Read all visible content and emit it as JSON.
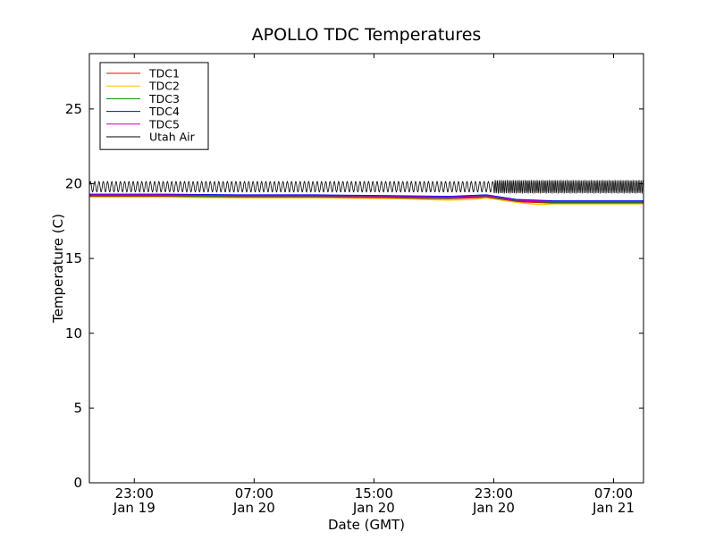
{
  "chart_data": {
    "type": "line",
    "title": "APOLLO TDC Temperatures",
    "xlabel": "Date (GMT)",
    "ylabel": "Temperature (C)",
    "ylim": [
      0,
      28.7
    ],
    "xlim_hours": [
      0,
      37
    ],
    "yticks": [
      0,
      5,
      10,
      15,
      20,
      25
    ],
    "xticks": [
      {
        "hour": 3,
        "line1": "23:00",
        "line2": "Jan 19"
      },
      {
        "hour": 11,
        "line1": "07:00",
        "line2": "Jan 20"
      },
      {
        "hour": 19,
        "line1": "15:00",
        "line2": "Jan 20"
      },
      {
        "hour": 27,
        "line1": "23:00",
        "line2": "Jan 20"
      },
      {
        "hour": 35,
        "line1": "07:00",
        "line2": "Jan 21"
      }
    ],
    "grid": false,
    "legend_position": "top-left",
    "series": [
      {
        "name": "TDC1",
        "color": "#ff0000",
        "points": [
          [
            0,
            19.15
          ],
          [
            5,
            19.15
          ],
          [
            10,
            19.1
          ],
          [
            15,
            19.1
          ],
          [
            20,
            19.05
          ],
          [
            24,
            19.0
          ],
          [
            26.5,
            19.1
          ],
          [
            28.5,
            18.8
          ],
          [
            31,
            18.7
          ],
          [
            37,
            18.7
          ]
        ]
      },
      {
        "name": "TDC2",
        "color": "#ffbf00",
        "points": [
          [
            0,
            19.1
          ],
          [
            5,
            19.1
          ],
          [
            10,
            19.05
          ],
          [
            15,
            19.05
          ],
          [
            20,
            19.0
          ],
          [
            24,
            18.9
          ],
          [
            25.5,
            18.95
          ],
          [
            26.5,
            19.05
          ],
          [
            28.5,
            18.75
          ],
          [
            30,
            18.6
          ],
          [
            31,
            18.65
          ],
          [
            37,
            18.65
          ]
        ]
      },
      {
        "name": "TDC3",
        "color": "#008000",
        "points": [
          [
            0,
            19.2
          ],
          [
            5,
            19.2
          ],
          [
            10,
            19.15
          ],
          [
            15,
            19.15
          ],
          [
            20,
            19.1
          ],
          [
            24,
            19.05
          ],
          [
            26.5,
            19.15
          ],
          [
            28.5,
            18.85
          ],
          [
            31,
            18.75
          ],
          [
            37,
            18.75
          ]
        ]
      },
      {
        "name": "TDC4",
        "color": "#0000ff",
        "points": [
          [
            0,
            19.3
          ],
          [
            5,
            19.3
          ],
          [
            10,
            19.25
          ],
          [
            15,
            19.25
          ],
          [
            20,
            19.2
          ],
          [
            24,
            19.15
          ],
          [
            26.5,
            19.25
          ],
          [
            28.5,
            18.95
          ],
          [
            31,
            18.85
          ],
          [
            37,
            18.85
          ]
        ]
      },
      {
        "name": "TDC5",
        "color": "#bf00bf",
        "points": [
          [
            0,
            19.25
          ],
          [
            5,
            19.25
          ],
          [
            10,
            19.2
          ],
          [
            15,
            19.2
          ],
          [
            20,
            19.15
          ],
          [
            24,
            19.1
          ],
          [
            26.5,
            19.2
          ],
          [
            28.5,
            18.9
          ],
          [
            31,
            18.8
          ],
          [
            37,
            18.8
          ]
        ]
      },
      {
        "name": "Utah Air",
        "color": "#000000",
        "center": 19.8,
        "amplitude_before": 0.35,
        "amplitude_after": 0.45,
        "transition_hour": 27,
        "cycles_per_hour_before": 3.5,
        "cycles_per_hour_after": 7.5
      }
    ]
  }
}
